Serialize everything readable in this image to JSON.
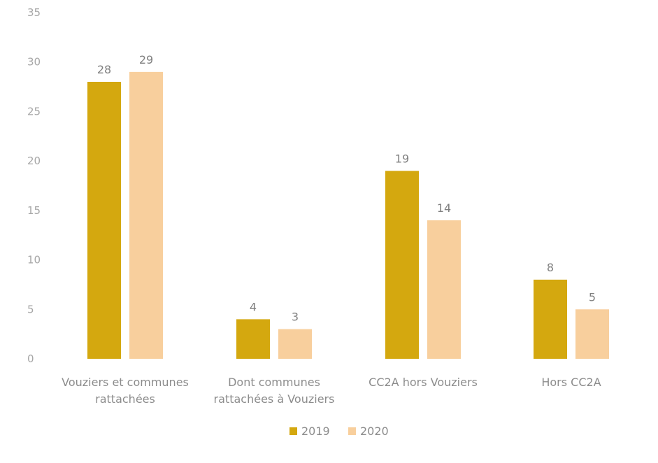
{
  "chart_data": {
    "type": "bar",
    "title": "",
    "xlabel": "",
    "ylabel": "",
    "categories": [
      [
        "Vouziers et communes",
        "rattachées"
      ],
      [
        "Dont communes",
        "rattachées à Vouziers"
      ],
      [
        "CC2A hors Vouziers"
      ],
      [
        "Hors CC2A"
      ]
    ],
    "series": [
      {
        "name": "2019",
        "values": [
          28,
          4,
          19,
          8
        ],
        "color": "#d4a80f"
      },
      {
        "name": "2020",
        "values": [
          29,
          3,
          14,
          5
        ],
        "color": "#f8cf9d"
      }
    ],
    "ylim": [
      0,
      35
    ],
    "yticks": [
      "0",
      "5",
      "10",
      "15",
      "20",
      "25",
      "30",
      "35"
    ],
    "grid": false,
    "legend_position": "bottom-center",
    "data_labels": true
  }
}
